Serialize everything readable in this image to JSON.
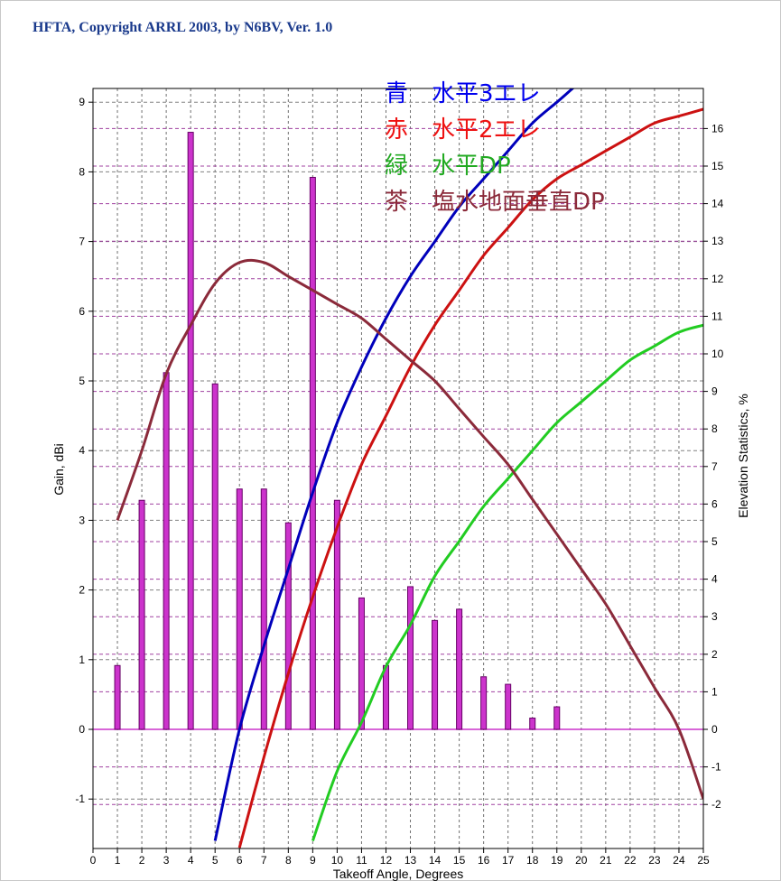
{
  "header": {
    "title": "HFTA, Copyright ARRL 2003, by N6BV, Ver. 1.0"
  },
  "chart_data": {
    "type": "bar+line",
    "xlabel": "Takeoff Angle, Degrees",
    "ylabel_left": "Gain, dBi",
    "ylabel_right": "Elevation Statistics, %",
    "xlim": [
      0,
      25
    ],
    "ylim_left": [
      -1.7,
      9.4
    ],
    "ylim_right": [
      -3,
      17
    ],
    "x_ticks": [
      0,
      1,
      2,
      3,
      4,
      5,
      6,
      7,
      8,
      9,
      10,
      11,
      12,
      13,
      14,
      15,
      16,
      17,
      18,
      19,
      20,
      21,
      22,
      23,
      24,
      25
    ],
    "y_left_ticks": [
      "-1",
      "0",
      "1",
      "2",
      "3",
      "4",
      "5",
      "6",
      "7",
      "8",
      "9"
    ],
    "y_right_ticks": [
      "-2",
      "-1",
      "0",
      "1",
      "2",
      "3",
      "4",
      "5",
      "6",
      "7",
      "8",
      "9",
      "10",
      "11",
      "12",
      "13",
      "14",
      "15",
      "16"
    ],
    "grid": true,
    "bars": {
      "axis": "right",
      "color": "#cc33cc",
      "x": [
        1,
        2,
        3,
        4,
        5,
        6,
        7,
        8,
        9,
        10,
        11,
        12,
        13,
        14,
        15,
        16,
        17,
        18,
        19
      ],
      "values": [
        1.7,
        6.1,
        9.5,
        15.9,
        9.2,
        6.4,
        6.4,
        5.5,
        14.7,
        6.1,
        3.5,
        1.7,
        3.8,
        2.9,
        3.2,
        1.4,
        1.2,
        0.3,
        0.6
      ]
    },
    "series": [
      {
        "color": "#0000bb",
        "axis": "left",
        "x": [
          5,
          6,
          7,
          8,
          9,
          10,
          11,
          12,
          13,
          14,
          15,
          16,
          17,
          18,
          19,
          20,
          20.5
        ],
        "y": [
          -1.6,
          0.0,
          1.2,
          2.3,
          3.4,
          4.4,
          5.2,
          5.9,
          6.5,
          7.0,
          7.5,
          7.9,
          8.3,
          8.7,
          9.0,
          9.3,
          9.4
        ]
      },
      {
        "color": "#cc1111",
        "axis": "left",
        "x": [
          6,
          7,
          8,
          9,
          10,
          11,
          12,
          13,
          14,
          15,
          16,
          17,
          18,
          19,
          20,
          21,
          22,
          23,
          24,
          25
        ],
        "y": [
          -1.7,
          -0.4,
          0.8,
          1.9,
          2.9,
          3.8,
          4.5,
          5.2,
          5.8,
          6.3,
          6.8,
          7.2,
          7.6,
          7.9,
          8.1,
          8.3,
          8.5,
          8.7,
          8.8,
          8.9
        ]
      },
      {
        "color": "#22cc22",
        "axis": "left",
        "x": [
          9,
          10,
          11,
          12,
          13,
          14,
          15,
          16,
          17,
          18,
          19,
          20,
          21,
          22,
          23,
          24,
          25
        ],
        "y": [
          -1.6,
          -0.6,
          0.1,
          0.9,
          1.5,
          2.2,
          2.7,
          3.2,
          3.6,
          4.0,
          4.4,
          4.7,
          5.0,
          5.3,
          5.5,
          5.7,
          5.8
        ]
      },
      {
        "color": "#8b2a3a",
        "axis": "left",
        "x": [
          1,
          2,
          3,
          4,
          5,
          6,
          7,
          8,
          9,
          10,
          11,
          12,
          13,
          14,
          15,
          16,
          17,
          18,
          19,
          20,
          21,
          22,
          23,
          24,
          25
        ],
        "y": [
          3.0,
          4.0,
          5.1,
          5.8,
          6.4,
          6.7,
          6.7,
          6.5,
          6.3,
          6.1,
          5.9,
          5.6,
          5.3,
          5.0,
          4.6,
          4.2,
          3.8,
          3.3,
          2.8,
          2.3,
          1.8,
          1.2,
          0.6,
          0.0,
          -1.0
        ]
      }
    ],
    "legend": {
      "placement": "top-right",
      "items": [
        {
          "text": "青　水平3エレ",
          "color": "#0000ee"
        },
        {
          "text": "赤　水平2エレ",
          "color": "#ee1111"
        },
        {
          "text": "緑　水平DP",
          "color": "#22aa22"
        },
        {
          "text": "茶　塩水地面垂直DP",
          "color": "#8b2a3a"
        }
      ]
    },
    "colors": {
      "grid_h": "#a040a0",
      "grid_v": "#707070",
      "zero_line": "#cc33cc"
    }
  }
}
